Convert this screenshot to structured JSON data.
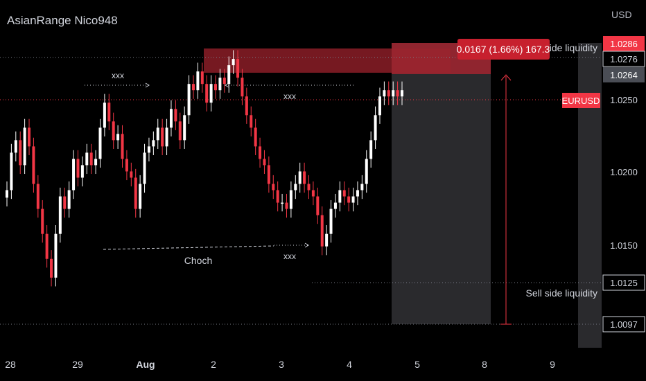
{
  "header": {
    "title": "AsianRange Nico948",
    "currency": "USD"
  },
  "colors": {
    "up": "#ffffff",
    "down": "#f23645",
    "background": "#000000",
    "text": "#d1d4dc",
    "grid_dotted": "#787b86",
    "accent_red": "#f23645"
  },
  "chart_data": {
    "type": "candlestick",
    "symbol": "EURUSD",
    "ylim": [
      1.005,
      1.0305
    ],
    "x_tick_labels": [
      "28",
      "29",
      "Aug",
      "2",
      "3",
      "4",
      "5",
      "8",
      "9"
    ],
    "y_tick_labels": [
      "1.0250",
      "1.0200",
      "1.0150"
    ],
    "price_levels": [
      {
        "label": "1.0286",
        "style": "red"
      },
      {
        "label": "1.0276",
        "style": "white"
      },
      {
        "label": "1.0264",
        "style": "gray"
      },
      {
        "label": "1.0125",
        "style": "white"
      },
      {
        "label": "1.0097",
        "style": "white"
      }
    ],
    "symbol_tag": "EURUSD",
    "measure_label": "0.0167 (1.66%) 167.3",
    "annotations": {
      "buy_side": "side liquidity",
      "sell_side": "Sell side liquidity",
      "choch": "Choch",
      "xxx": "xxx"
    },
    "series": [
      {
        "values": [
          1.0175,
          1.0205,
          1.0215,
          1.0195,
          1.0225,
          1.021,
          1.018,
          1.016,
          1.014,
          1.012,
          1.0105,
          1.014,
          1.017,
          1.016,
          1.0175,
          1.02,
          1.0185,
          1.0195,
          1.0205,
          1.0195,
          1.02,
          1.0225,
          1.0245,
          1.023,
          1.0215,
          1.022,
          1.02,
          1.019,
          1.0185,
          1.016,
          1.018,
          1.0205,
          1.021,
          1.0215,
          1.0225,
          1.021,
          1.0225,
          1.024,
          1.023,
          1.0215,
          1.0235,
          1.026,
          1.0255,
          1.027,
          1.026,
          1.0245,
          1.026,
          1.0255,
          1.0265,
          1.026,
          1.0275,
          1.028,
          1.0265,
          1.025,
          1.0235,
          1.0225,
          1.021,
          1.02,
          1.0195,
          1.018,
          1.0175,
          1.0165,
          1.0165,
          1.016,
          1.0175,
          1.018,
          1.019,
          1.018,
          1.0175,
          1.017,
          1.0155,
          1.013,
          1.014,
          1.016,
          1.0165,
          1.0175,
          1.017,
          1.0165,
          1.017,
          1.0175,
          1.018,
          1.02,
          1.0215,
          1.0235,
          1.025,
          1.0255,
          1.025,
          1.0255,
          1.025,
          1.0255
        ]
      }
    ]
  }
}
